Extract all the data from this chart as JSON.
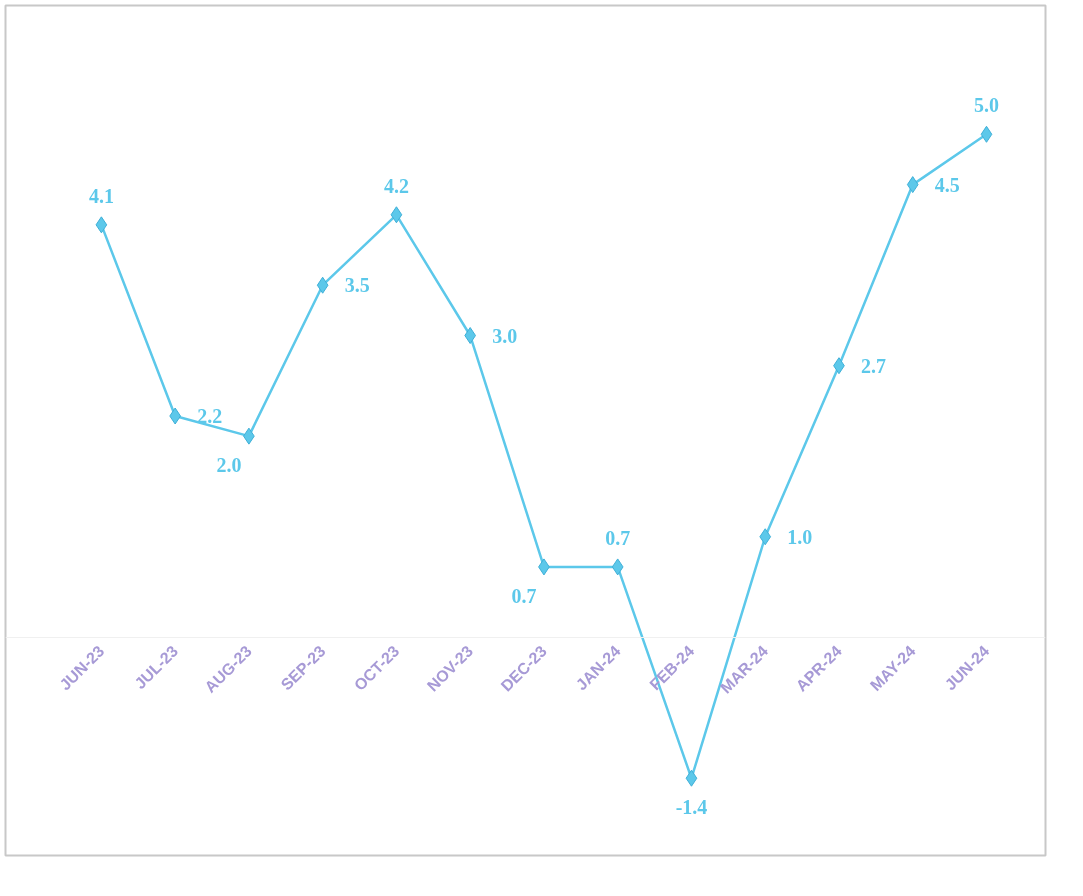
{
  "chart_data": {
    "type": "line",
    "categories": [
      "JUN-23",
      "JUL-23",
      "AUG-23",
      "SEP-23",
      "OCT-23",
      "NOV-23",
      "DEC-23",
      "JAN-24",
      "FEB-24",
      "MAR-24",
      "APR-24",
      "MAY-24",
      "JUN-24"
    ],
    "series": [
      {
        "color": "#5cc8ea",
        "values": [
          4.1,
          2.2,
          2.0,
          3.5,
          4.2,
          3.0,
          0.7,
          0.7,
          -1.4,
          1.0,
          2.7,
          4.5,
          5.0
        ],
        "value_labels": [
          "4.1",
          "2.2",
          "2.0",
          "3.5",
          "4.2",
          "3.0",
          "0.7",
          "0.7",
          "-1.4",
          "1.0",
          "2.7",
          "4.5",
          "5.0"
        ]
      }
    ],
    "marker": "diamond",
    "line_style": "solid",
    "grid": false,
    "tick_labels": "x"
  }
}
